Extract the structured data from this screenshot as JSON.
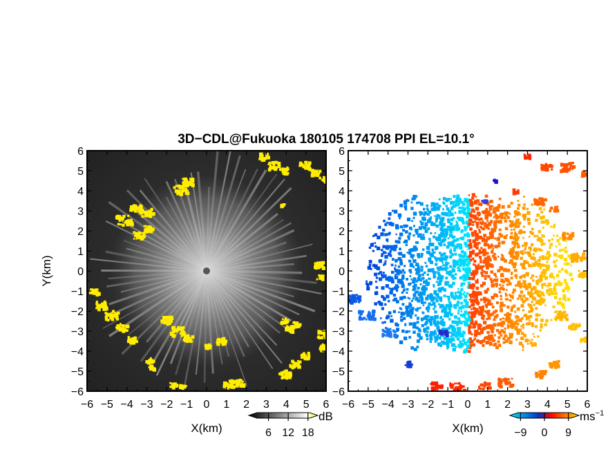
{
  "title": "3D−CDL@Fukuoka 180105 174708 PPI EL=10.1°",
  "chart_data": [
    {
      "type": "heatmap",
      "quantity": "backscatter",
      "xlabel": "X(km)",
      "ylabel": "Y(km)",
      "xlim": [
        -6,
        6
      ],
      "ylim": [
        -6,
        6
      ],
      "xticks": [
        "−6",
        "−5",
        "−4",
        "−3",
        "−2",
        "−1",
        "0",
        "1",
        "2",
        "3",
        "4",
        "5",
        "6"
      ],
      "yticks": [
        "−6",
        "−5",
        "−4",
        "−3",
        "−2",
        "−1",
        "0",
        "1",
        "2",
        "3",
        "4",
        "5",
        "6"
      ],
      "colorbar": {
        "unit": "dB",
        "ticks": [
          6,
          12,
          18
        ],
        "tick_labels": [
          "6",
          "12",
          "18"
        ],
        "range": [
          0,
          21
        ],
        "colors": [
          "#000000",
          "#ffffff",
          "#ffee00"
        ]
      },
      "background_color": "#2b2b2b",
      "highlight_color": "#ffee00"
    },
    {
      "type": "heatmap",
      "quantity": "radial velocity",
      "xlabel": "X(km)",
      "ylabel": "",
      "xlim": [
        -6,
        6
      ],
      "ylim": [
        -6,
        6
      ],
      "xticks": [
        "−6",
        "−5",
        "−4",
        "−3",
        "−2",
        "−1",
        "0",
        "1",
        "2",
        "3",
        "4",
        "5",
        "6"
      ],
      "yticks": [
        "−6",
        "−5",
        "−4",
        "−3",
        "−2",
        "−1",
        "0",
        "1",
        "2",
        "3",
        "4",
        "5",
        "6"
      ],
      "colorbar": {
        "unit": "ms",
        "unit_exponent": "−1",
        "ticks": [
          -9,
          0,
          9
        ],
        "tick_labels": [
          "−9",
          "0",
          "9"
        ],
        "range": [
          -13,
          13
        ],
        "colors": [
          "#00e5ff",
          "#0033cc",
          "#ff0000",
          "#ffdd00"
        ]
      },
      "center_color": "#00e5ff"
    }
  ]
}
